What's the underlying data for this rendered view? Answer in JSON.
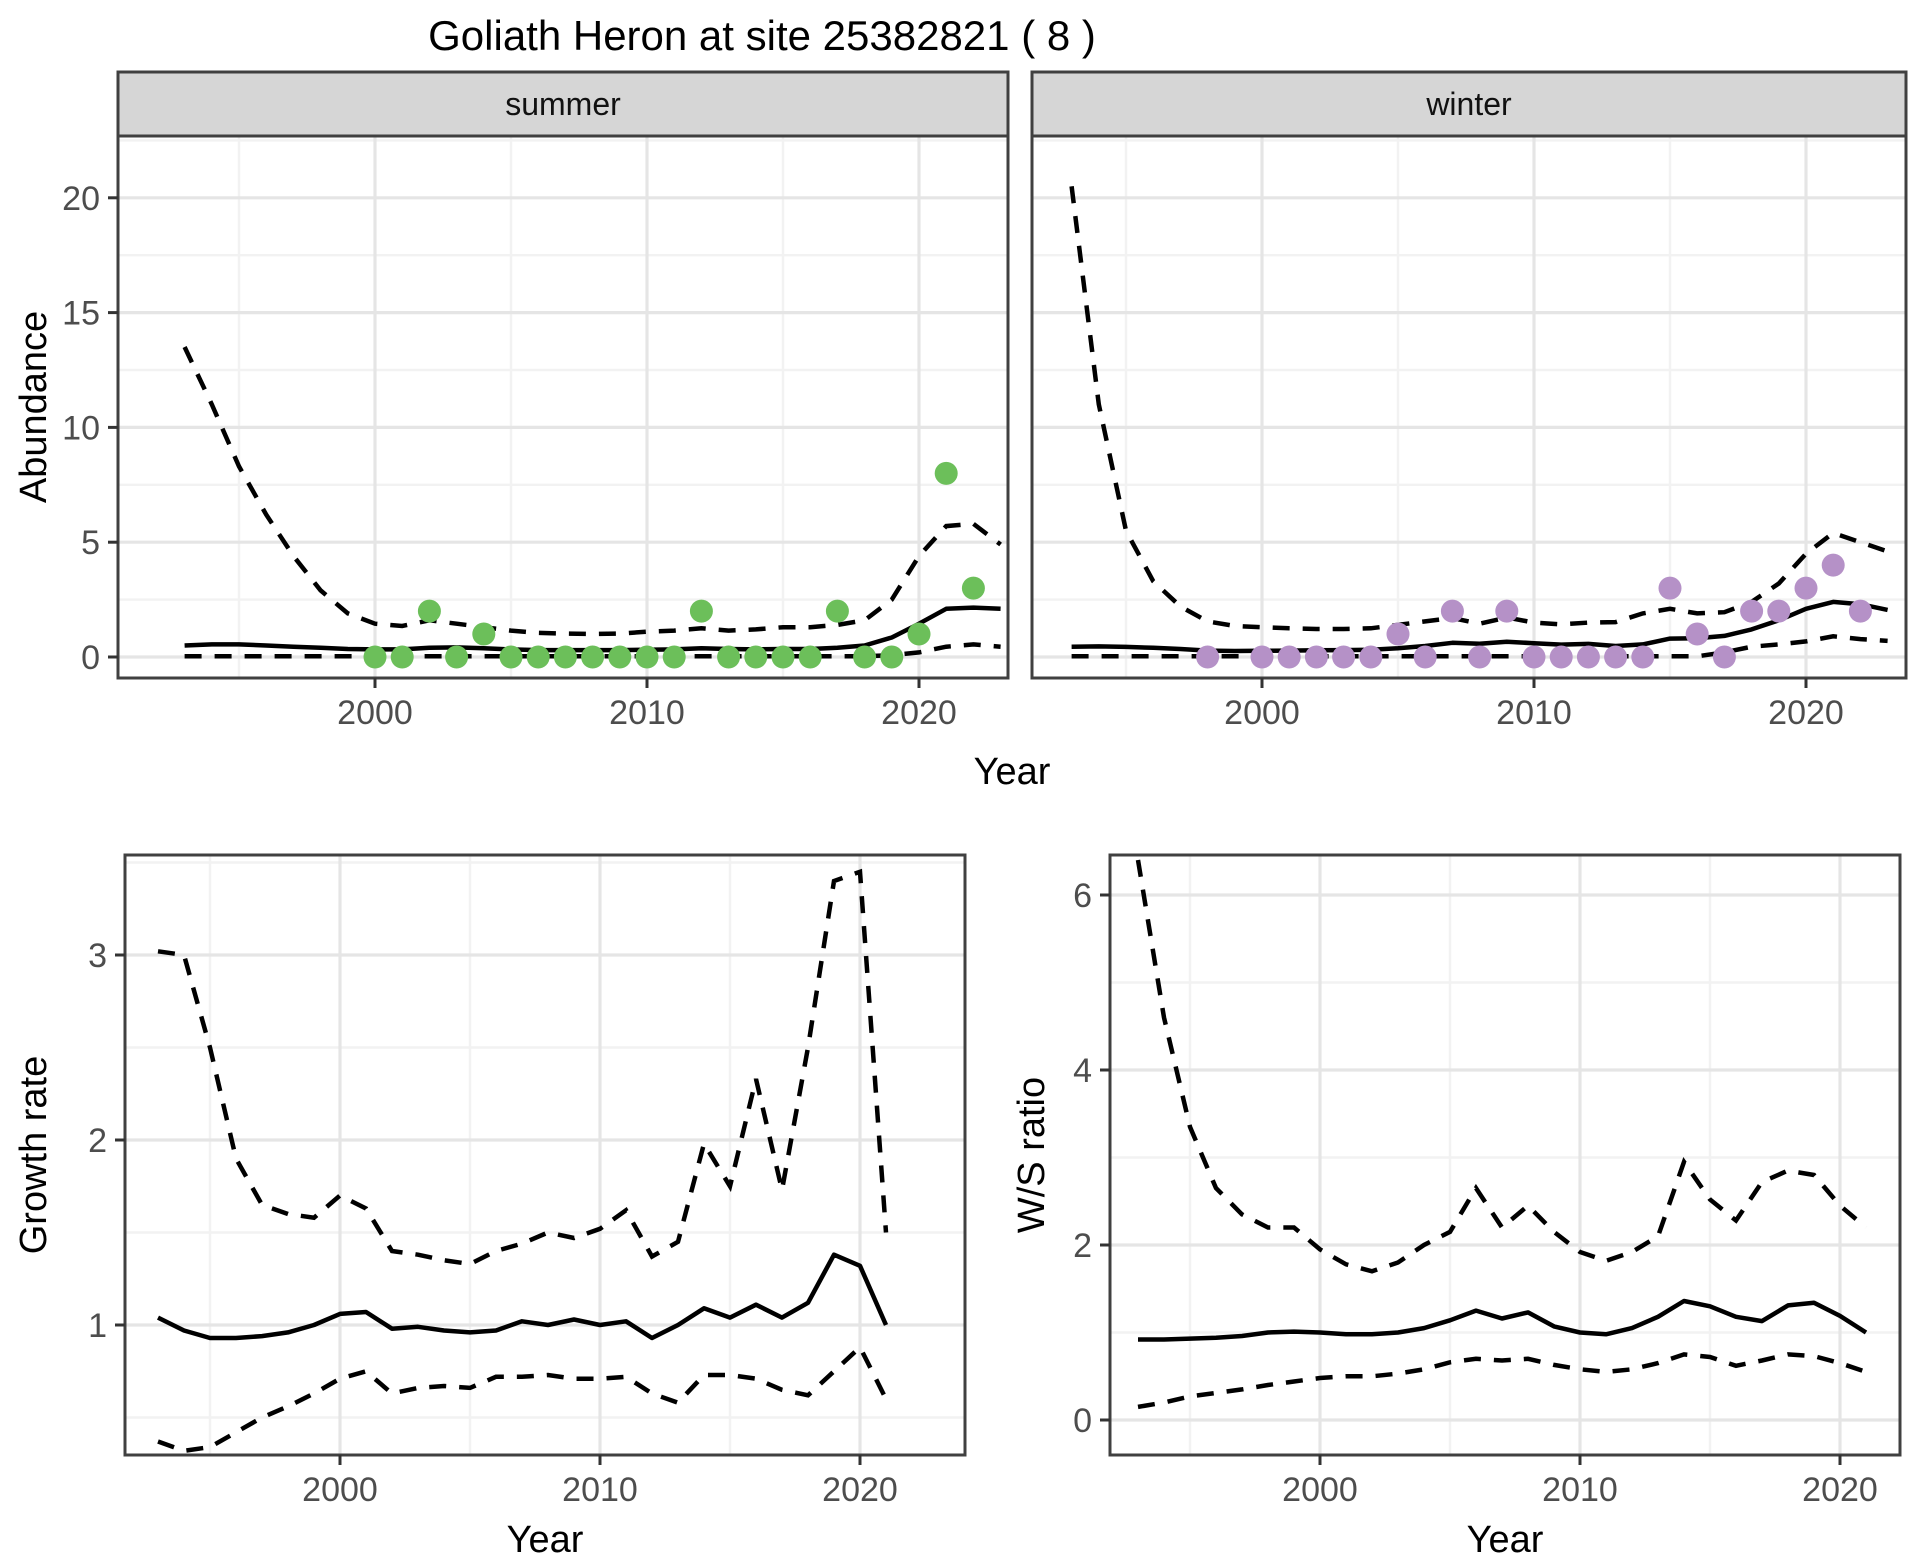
{
  "title": "Goliath Heron at site 25382821 ( 8 )",
  "colors": {
    "summer_point": "#6cbf5a",
    "winter_point": "#b591c7",
    "line": "#000000",
    "strip_bg": "#d6d6d6",
    "panel_border": "#404040",
    "grid_major": "#e5e5e5",
    "grid_minor": "#f2f2f2",
    "tick_text": "#4d4d4d",
    "tick_mark": "#333333"
  },
  "chart_data": [
    {
      "type": "scatter+line",
      "panel": "abundance-summer",
      "facet_label": "summer",
      "ylabel": "Abundance",
      "xlabel": "Year",
      "x_ticks": [
        2000,
        2010,
        2020
      ],
      "x_minor": [
        1995,
        2005,
        2015
      ],
      "y_ticks": [
        0,
        5,
        10,
        15,
        20
      ],
      "y_minor": [
        2.5,
        7.5,
        12.5,
        17.5,
        22.5
      ],
      "xlim": [
        1990.6,
        2023.4
      ],
      "ylim": [
        -0.9,
        22.7
      ],
      "point_color": "#6cbf5a",
      "points": {
        "x": [
          2000,
          2001,
          2002,
          2003,
          2004,
          2005,
          2006,
          2007,
          2008,
          2009,
          2010,
          2011,
          2012,
          2013,
          2014,
          2015,
          2016,
          2017,
          2018,
          2019,
          2020,
          2021,
          2022
        ],
        "y": [
          0,
          0,
          2,
          0,
          1,
          0,
          0,
          0,
          0,
          0,
          0,
          0,
          2,
          0,
          0,
          0,
          0,
          2,
          0,
          0,
          1,
          8,
          3
        ]
      },
      "trend": {
        "x": [
          1993,
          1994,
          1995,
          1996,
          1997,
          1998,
          1999,
          2000,
          2001,
          2002,
          2003,
          2004,
          2005,
          2006,
          2007,
          2008,
          2009,
          2010,
          2011,
          2012,
          2013,
          2014,
          2015,
          2016,
          2017,
          2018,
          2019,
          2020,
          2021,
          2022,
          2023
        ],
        "y": [
          0.5,
          0.55,
          0.55,
          0.5,
          0.45,
          0.4,
          0.35,
          0.33,
          0.33,
          0.4,
          0.42,
          0.38,
          0.33,
          0.3,
          0.3,
          0.3,
          0.3,
          0.32,
          0.33,
          0.38,
          0.35,
          0.33,
          0.35,
          0.35,
          0.4,
          0.5,
          0.85,
          1.45,
          2.1,
          2.15,
          2.1
        ]
      },
      "upper_ci": {
        "x": [
          1993,
          1994,
          1995,
          1996,
          1997,
          1998,
          1999,
          2000,
          2001,
          2002,
          2003,
          2004,
          2005,
          2006,
          2007,
          2008,
          2009,
          2010,
          2011,
          2012,
          2013,
          2014,
          2015,
          2016,
          2017,
          2018,
          2019,
          2020,
          2021,
          2022,
          2023
        ],
        "y": [
          13.5,
          11.0,
          8.3,
          6.2,
          4.4,
          2.9,
          1.9,
          1.45,
          1.35,
          1.6,
          1.45,
          1.3,
          1.15,
          1.05,
          1.02,
          1.0,
          1.02,
          1.1,
          1.15,
          1.25,
          1.15,
          1.2,
          1.3,
          1.3,
          1.4,
          1.6,
          2.5,
          4.4,
          5.7,
          5.8,
          4.9
        ]
      },
      "lower_ci": {
        "x": [
          1993,
          1994,
          1995,
          1996,
          1997,
          1998,
          1999,
          2000,
          2001,
          2002,
          2003,
          2004,
          2005,
          2006,
          2007,
          2008,
          2009,
          2010,
          2011,
          2012,
          2013,
          2014,
          2015,
          2016,
          2017,
          2018,
          2019,
          2020,
          2021,
          2022,
          2023
        ],
        "y": [
          0.03,
          0.03,
          0.03,
          0.03,
          0.03,
          0.03,
          0.03,
          0.03,
          0.03,
          0.03,
          0.03,
          0.03,
          0.03,
          0.03,
          0.03,
          0.03,
          0.03,
          0.03,
          0.03,
          0.03,
          0.03,
          0.03,
          0.03,
          0.03,
          0.03,
          0.03,
          0.08,
          0.2,
          0.45,
          0.55,
          0.45
        ]
      }
    },
    {
      "type": "scatter+line",
      "panel": "abundance-winter",
      "facet_label": "winter",
      "ylabel": "Abundance",
      "xlabel": "Year",
      "x_ticks": [
        2000,
        2010,
        2020
      ],
      "x_minor": [
        1995,
        2005,
        2015
      ],
      "y_ticks": [
        0,
        5,
        10,
        15,
        20
      ],
      "y_minor": [
        2.5,
        7.5,
        12.5,
        17.5,
        22.5
      ],
      "xlim": [
        1991.6,
        2023.7
      ],
      "ylim": [
        -0.9,
        22.7
      ],
      "point_color": "#b591c7",
      "points": {
        "x": [
          1998,
          2000,
          2001,
          2002,
          2003,
          2004,
          2005,
          2006,
          2007,
          2008,
          2009,
          2010,
          2011,
          2012,
          2013,
          2014,
          2015,
          2016,
          2017,
          2018,
          2019,
          2020,
          2021,
          2022
        ],
        "y": [
          0,
          0,
          0,
          0,
          0,
          0,
          1,
          0,
          2,
          0,
          2,
          0,
          0,
          0,
          0,
          0,
          3,
          1,
          0,
          2,
          2,
          3,
          4,
          2
        ]
      },
      "trend": {
        "x": [
          1993,
          1994,
          1995,
          1996,
          1997,
          1998,
          1999,
          2000,
          2001,
          2002,
          2003,
          2004,
          2005,
          2006,
          2007,
          2008,
          2009,
          2010,
          2011,
          2012,
          2013,
          2014,
          2015,
          2016,
          2017,
          2018,
          2019,
          2020,
          2021,
          2022,
          2023
        ],
        "y": [
          0.45,
          0.46,
          0.44,
          0.4,
          0.35,
          0.28,
          0.26,
          0.27,
          0.28,
          0.29,
          0.3,
          0.32,
          0.38,
          0.48,
          0.62,
          0.58,
          0.66,
          0.6,
          0.54,
          0.57,
          0.48,
          0.55,
          0.8,
          0.82,
          0.92,
          1.2,
          1.6,
          2.1,
          2.4,
          2.3,
          2.05
        ]
      },
      "upper_ci": {
        "x": [
          1993,
          1994,
          1995,
          1996,
          1997,
          1998,
          1999,
          2000,
          2001,
          2002,
          2003,
          2004,
          2005,
          2006,
          2007,
          2008,
          2009,
          2010,
          2011,
          2012,
          2013,
          2014,
          2015,
          2016,
          2017,
          2018,
          2019,
          2020,
          2021,
          2022,
          2023
        ],
        "y": [
          20.5,
          11.0,
          5.5,
          3.3,
          2.2,
          1.55,
          1.35,
          1.3,
          1.25,
          1.22,
          1.22,
          1.25,
          1.4,
          1.55,
          1.7,
          1.45,
          1.72,
          1.5,
          1.42,
          1.5,
          1.52,
          1.9,
          2.1,
          1.9,
          1.95,
          2.4,
          3.2,
          4.5,
          5.4,
          5.0,
          4.6
        ]
      },
      "lower_ci": {
        "x": [
          1993,
          1994,
          1995,
          1996,
          1997,
          1998,
          1999,
          2000,
          2001,
          2002,
          2003,
          2004,
          2005,
          2006,
          2007,
          2008,
          2009,
          2010,
          2011,
          2012,
          2013,
          2014,
          2015,
          2016,
          2017,
          2018,
          2019,
          2020,
          2021,
          2022,
          2023
        ],
        "y": [
          0.03,
          0.03,
          0.03,
          0.03,
          0.03,
          0.03,
          0.03,
          0.03,
          0.03,
          0.03,
          0.03,
          0.03,
          0.03,
          0.03,
          0.03,
          0.03,
          0.03,
          0.03,
          0.03,
          0.03,
          0.03,
          0.03,
          0.03,
          0.03,
          0.2,
          0.45,
          0.55,
          0.68,
          0.9,
          0.78,
          0.7
        ]
      }
    },
    {
      "type": "line",
      "panel": "growth-rate",
      "facet_label": null,
      "ylabel": "Growth rate",
      "xlabel": "Year",
      "x_ticks": [
        2000,
        2010,
        2020
      ],
      "x_minor": [
        1995,
        2005,
        2015
      ],
      "y_ticks": [
        1,
        2,
        3
      ],
      "y_minor": [
        0.5,
        1.5,
        2.5,
        3.5
      ],
      "xlim": [
        1991.7,
        2024.0
      ],
      "ylim": [
        0.3,
        3.54
      ],
      "trend": {
        "x": [
          1993,
          1994,
          1995,
          1996,
          1997,
          1998,
          1999,
          2000,
          2001,
          2002,
          2003,
          2004,
          2005,
          2006,
          2007,
          2008,
          2009,
          2010,
          2011,
          2012,
          2013,
          2014,
          2015,
          2016,
          2017,
          2018,
          2019,
          2020,
          2021
        ],
        "y": [
          1.04,
          0.97,
          0.93,
          0.93,
          0.94,
          0.96,
          1.0,
          1.06,
          1.07,
          0.98,
          0.99,
          0.97,
          0.96,
          0.97,
          1.02,
          1.0,
          1.03,
          1.0,
          1.02,
          0.93,
          1.0,
          1.09,
          1.04,
          1.11,
          1.04,
          1.12,
          1.38,
          1.32,
          1.0
        ]
      },
      "upper_ci": {
        "x": [
          1993,
          1994,
          1995,
          1996,
          1997,
          1998,
          1999,
          2000,
          2001,
          2002,
          2003,
          2004,
          2005,
          2006,
          2007,
          2008,
          2009,
          2010,
          2011,
          2012,
          2013,
          2014,
          2015,
          2016,
          2017,
          2018,
          2019,
          2020,
          2021
        ],
        "y": [
          3.02,
          3.0,
          2.5,
          1.9,
          1.65,
          1.6,
          1.58,
          1.7,
          1.63,
          1.4,
          1.38,
          1.35,
          1.33,
          1.4,
          1.44,
          1.5,
          1.47,
          1.52,
          1.62,
          1.37,
          1.45,
          1.98,
          1.75,
          2.33,
          1.73,
          2.5,
          3.4,
          3.45,
          1.5
        ]
      },
      "lower_ci": {
        "x": [
          1993,
          1994,
          1995,
          1996,
          1997,
          1998,
          1999,
          2000,
          2001,
          2002,
          2003,
          2004,
          2005,
          2006,
          2007,
          2008,
          2009,
          2010,
          2011,
          2012,
          2013,
          2014,
          2015,
          2016,
          2017,
          2018,
          2019,
          2020,
          2021
        ],
        "y": [
          0.37,
          0.32,
          0.34,
          0.42,
          0.5,
          0.56,
          0.63,
          0.71,
          0.75,
          0.63,
          0.66,
          0.67,
          0.66,
          0.72,
          0.72,
          0.73,
          0.71,
          0.71,
          0.72,
          0.63,
          0.58,
          0.73,
          0.73,
          0.71,
          0.65,
          0.62,
          0.75,
          0.88,
          0.6
        ]
      }
    },
    {
      "type": "line",
      "panel": "ws-ratio",
      "facet_label": null,
      "ylabel": "W/S ratio",
      "xlabel": "Year",
      "x_ticks": [
        2000,
        2010,
        2020
      ],
      "x_minor": [
        1995,
        2005,
        2015
      ],
      "y_ticks": [
        0,
        2,
        4,
        6
      ],
      "y_minor": [
        1,
        3,
        5
      ],
      "xlim": [
        1991.9,
        2022.3
      ],
      "ylim": [
        -0.4,
        6.46
      ],
      "trend": {
        "x": [
          1993,
          1994,
          1995,
          1996,
          1997,
          1998,
          1999,
          2000,
          2001,
          2002,
          2003,
          2004,
          2005,
          2006,
          2007,
          2008,
          2009,
          2010,
          2011,
          2012,
          2013,
          2014,
          2015,
          2016,
          2017,
          2018,
          2019,
          2020,
          2021
        ],
        "y": [
          0.92,
          0.92,
          0.93,
          0.94,
          0.96,
          1.0,
          1.01,
          1.0,
          0.98,
          0.98,
          1.0,
          1.05,
          1.14,
          1.25,
          1.16,
          1.23,
          1.07,
          1.0,
          0.98,
          1.05,
          1.18,
          1.36,
          1.3,
          1.18,
          1.13,
          1.31,
          1.34,
          1.19,
          1.0
        ]
      },
      "upper_ci": {
        "x": [
          1993,
          1994,
          1995,
          1996,
          1997,
          1998,
          1999,
          2000,
          2001,
          2002,
          2003,
          2004,
          2005,
          2006,
          2007,
          2008,
          2009,
          2010,
          2011,
          2012,
          2013,
          2014,
          2015,
          2016,
          2017,
          2018,
          2019,
          2020,
          2021
        ],
        "y": [
          6.4,
          4.6,
          3.35,
          2.65,
          2.35,
          2.2,
          2.2,
          1.95,
          1.78,
          1.7,
          1.8,
          2.0,
          2.15,
          2.65,
          2.2,
          2.45,
          2.15,
          1.92,
          1.82,
          1.92,
          2.1,
          2.95,
          2.52,
          2.28,
          2.72,
          2.85,
          2.8,
          2.45,
          2.2
        ]
      },
      "lower_ci": {
        "x": [
          1993,
          1994,
          1995,
          1996,
          1997,
          1998,
          1999,
          2000,
          2001,
          2002,
          2003,
          2004,
          2005,
          2006,
          2007,
          2008,
          2009,
          2010,
          2011,
          2012,
          2013,
          2014,
          2015,
          2016,
          2017,
          2018,
          2019,
          2020,
          2021
        ],
        "y": [
          0.15,
          0.2,
          0.27,
          0.31,
          0.35,
          0.4,
          0.44,
          0.48,
          0.5,
          0.5,
          0.53,
          0.58,
          0.66,
          0.7,
          0.68,
          0.7,
          0.63,
          0.58,
          0.55,
          0.58,
          0.65,
          0.75,
          0.72,
          0.62,
          0.68,
          0.75,
          0.73,
          0.65,
          0.55
        ]
      }
    }
  ]
}
